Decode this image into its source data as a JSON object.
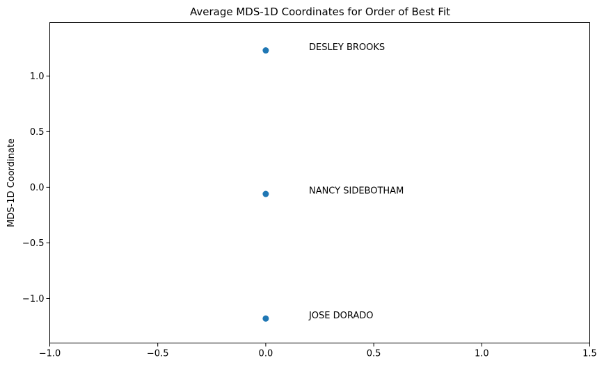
{
  "chart_data": {
    "type": "scatter",
    "title": "Average MDS-1D Coordinates for Order of Best Fit",
    "xlabel": "",
    "ylabel": "MDS-1D Coordinate",
    "xlim": [
      -1.0,
      1.5
    ],
    "ylim": [
      -1.4,
      1.48
    ],
    "xticks": [
      -1.0,
      -0.5,
      0.0,
      0.5,
      1.0,
      1.5
    ],
    "xtick_labels": [
      "−1.0",
      "−0.5",
      "0.0",
      "0.5",
      "1.0",
      "1.5"
    ],
    "yticks": [
      -1.0,
      -0.5,
      0.0,
      0.5,
      1.0
    ],
    "ytick_labels": [
      "−1.0",
      "−0.5",
      "0.0",
      "0.5",
      "1.0"
    ],
    "grid": false,
    "points": [
      {
        "x": 0.0,
        "y": 1.23,
        "label": "DESLEY BROOKS",
        "label_x": 0.2,
        "label_y": 1.23
      },
      {
        "x": 0.0,
        "y": -0.06,
        "label": "NANCY SIDEBOTHAM",
        "label_x": 0.2,
        "label_y": -0.06
      },
      {
        "x": 0.0,
        "y": -1.18,
        "label": "JOSE DORADO",
        "label_x": 0.2,
        "label_y": -1.18
      }
    ],
    "marker_color": "#1f77b4"
  }
}
